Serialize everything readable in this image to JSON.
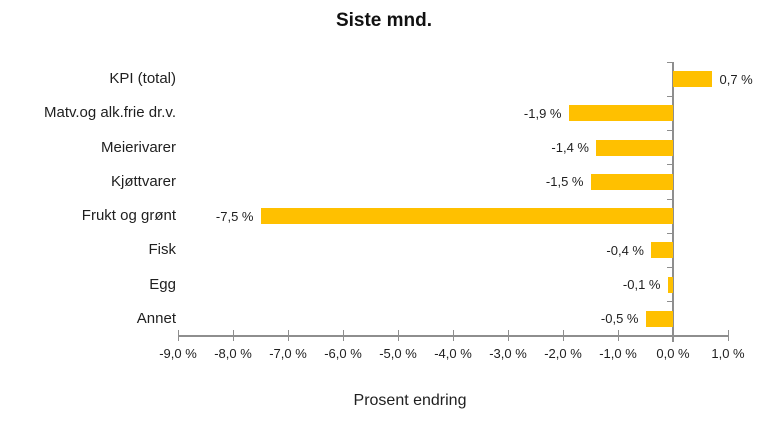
{
  "chart_data": {
    "type": "bar",
    "orientation": "horizontal",
    "title": "Siste mnd.",
    "xlabel": "Prosent endring",
    "categories": [
      "KPI (total)",
      "Matv.og alk.frie dr.v.",
      "Meierivarer",
      "Kjøttvarer",
      "Frukt og grønt",
      "Fisk",
      "Egg",
      "Annet"
    ],
    "values": [
      0.7,
      -1.9,
      -1.4,
      -1.5,
      -7.5,
      -0.4,
      -0.1,
      -0.5
    ],
    "value_labels": [
      "0,7 %",
      "-1,9 %",
      "-1,4 %",
      "-1,5 %",
      "-7,5 %",
      "-0,4 %",
      "-0,1 %",
      "-0,5 %"
    ],
    "xlim": [
      -9.0,
      1.0
    ],
    "xticks": [
      -9,
      -8,
      -7,
      -6,
      -5,
      -4,
      -3,
      -2,
      -1,
      0,
      1
    ],
    "xtick_labels": [
      "-9,0 %",
      "-8,0 %",
      "-7,0 %",
      "-6,0 %",
      "-5,0 %",
      "-4,0 %",
      "-3,0 %",
      "-2,0 %",
      "-1,0 %",
      "0,0 %",
      "1,0 %"
    ],
    "bar_color": "#FFC000",
    "axis_color": "#8E8E8E",
    "text_color": "#1F1F1F",
    "grid": false,
    "legend": null
  }
}
